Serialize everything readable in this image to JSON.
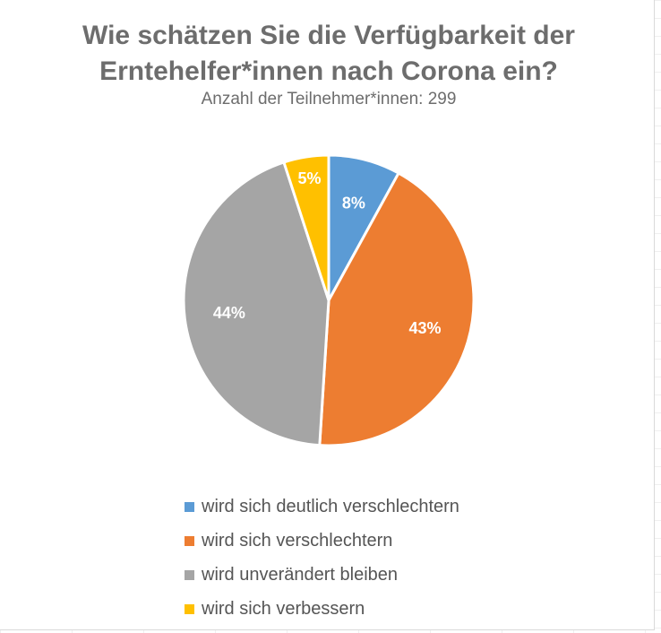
{
  "chart_data": {
    "type": "pie",
    "title_line1": "Wie schätzen Sie die Verfügbarkeit der",
    "title_line2": "Erntehelfer*innen nach Corona ein?",
    "subtitle": "Anzahl der Teilnehmer*innen: 299",
    "legend_position": "bottom",
    "slices": [
      {
        "label": "wird sich deutlich verschlechtern",
        "value": 8,
        "display": "8%",
        "color": "#5b9bd5"
      },
      {
        "label": "wird sich verschlechtern",
        "value": 43,
        "display": "43%",
        "color": "#ed7d31"
      },
      {
        "label": "wird unverändert bleiben",
        "value": 44,
        "display": "44%",
        "color": "#a5a5a5"
      },
      {
        "label": "wird sich verbessern",
        "value": 5,
        "display": "5%",
        "color": "#ffc000"
      }
    ]
  }
}
